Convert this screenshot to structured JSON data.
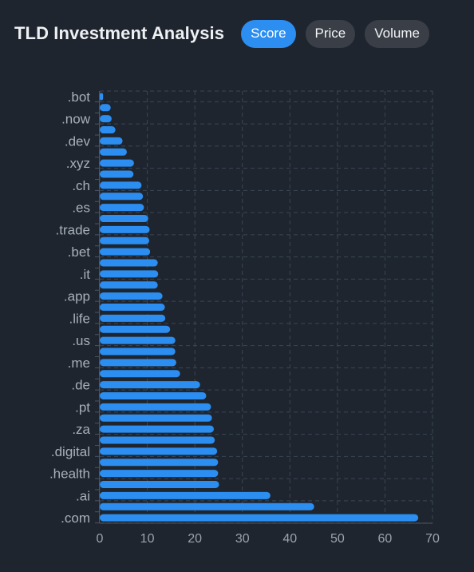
{
  "header": {
    "title": "TLD Investment Analysis",
    "tabs": [
      {
        "label": "Score",
        "active": true
      },
      {
        "label": "Price",
        "active": false
      },
      {
        "label": "Volume",
        "active": false
      }
    ]
  },
  "colors": {
    "background": "#1f252e",
    "bar": "#2b8ef0",
    "active_tab": "#2b8ef0",
    "inactive_tab": "#3a3f47",
    "grid": "#3a4654"
  },
  "chart_data": {
    "type": "bar",
    "orientation": "horizontal",
    "categories": [
      ".bot",
      "",
      ".now",
      "",
      ".dev",
      "",
      ".xyz",
      "",
      ".ch",
      "",
      ".es",
      "",
      ".trade",
      "",
      ".bet",
      "",
      ".it",
      "",
      ".app",
      "",
      ".life",
      "",
      ".us",
      "",
      ".me",
      "",
      ".de",
      "",
      ".pt",
      "",
      ".za",
      "",
      ".digital",
      "",
      ".health",
      "",
      ".ai",
      "",
      ".com"
    ],
    "values": [
      0.7,
      2.3,
      2.5,
      3.3,
      4.8,
      5.7,
      7.2,
      7.1,
      8.8,
      9.1,
      9.3,
      10.2,
      10.5,
      10.4,
      10.6,
      12.2,
      12.3,
      12.2,
      13.2,
      13.7,
      13.8,
      14.8,
      15.9,
      15.9,
      16.1,
      16.9,
      21.1,
      22.4,
      23.4,
      23.6,
      24.0,
      24.2,
      24.7,
      24.9,
      24.9,
      25.1,
      35.9,
      45.1,
      67.0
    ],
    "xlim": [
      0,
      70
    ],
    "xticks": [
      0,
      10,
      20,
      30,
      40,
      50,
      60,
      70
    ],
    "grid": true,
    "title": "",
    "xlabel": "",
    "ylabel": ""
  }
}
